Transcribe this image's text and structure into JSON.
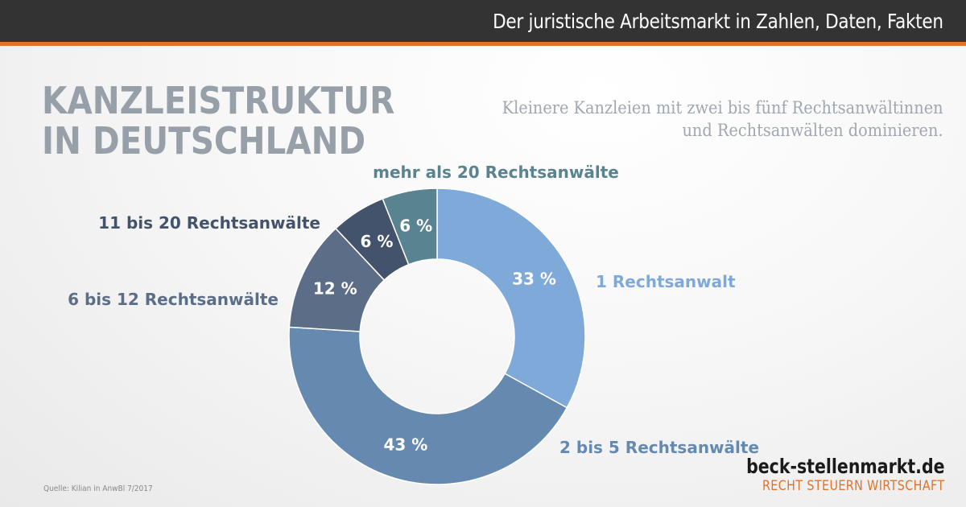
{
  "header": {
    "title": "Der juristische Arbeitsmarkt in Zahlen, Daten, Fakten",
    "bar_color": "#333333",
    "accent_color": "#e2712a"
  },
  "title_lines": [
    "KANZLEISTRUKTUR",
    "IN DEUTSCHLAND"
  ],
  "subtitle_lines": [
    "Kleinere Kanzleien mit zwei bis fünf Rechtsanwältinnen",
    "und Rechtsanwälten dominieren."
  ],
  "chart_data": {
    "type": "pie",
    "donut": true,
    "unit": "%",
    "slices": [
      {
        "label": "1 Rechtsanwalt",
        "value": 33,
        "value_label": "33 %",
        "color": "#7ea9d8"
      },
      {
        "label": "2 bis 5 Rechtsanwälte",
        "value": 43,
        "value_label": "43 %",
        "color": "#6689b0"
      },
      {
        "label": "6 bis 12 Rechtsanwälte",
        "value": 12,
        "value_label": "12 %",
        "color": "#5c6e87"
      },
      {
        "label": "11 bis 20 Rechtsanwälte",
        "value": 6,
        "value_label": "6 %",
        "color": "#44536c"
      },
      {
        "label": "mehr als 20 Rechtsanwälte",
        "value": 6,
        "value_label": "6 %",
        "color": "#5a8392"
      }
    ]
  },
  "source": "Quelle: Kilian in AnwBl 7/2017",
  "brand": {
    "name": "beck-stellenmarkt.de",
    "tagline": "RECHT  STEUERN  WIRTSCHAFT"
  }
}
